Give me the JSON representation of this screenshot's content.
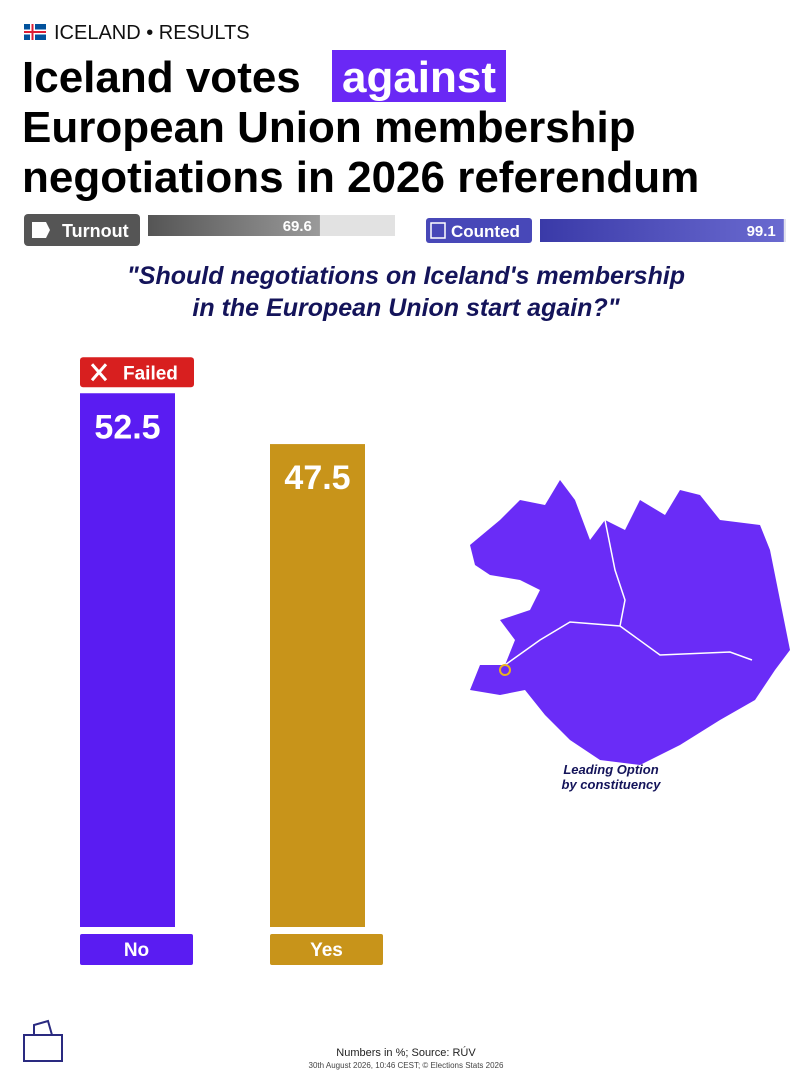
{
  "header": {
    "kicker": "ICELAND • RESULTS",
    "title_lead": "Iceland votes",
    "title_highlight": "against",
    "title_line2": "European Union membership",
    "title_line3": "negotiations in 2026 referendum"
  },
  "stats": {
    "turnout": {
      "label": "Turnout",
      "value": 69.6,
      "xlim": [
        0,
        100
      ]
    },
    "counted": {
      "label": "Counted",
      "value": 99.1,
      "xlim": [
        0,
        100
      ]
    }
  },
  "question": {
    "line1": "\"Should negotiations on Iceland's membership",
    "line2": "in the European Union start again?\""
  },
  "chart_data": {
    "type": "bar",
    "categories": [
      "No",
      "Yes"
    ],
    "values": [
      52.5,
      47.5
    ],
    "colors": [
      "#5a1cf2",
      "#c8941a"
    ],
    "ylim": [
      0,
      60
    ],
    "outcome_badge": "Failed"
  },
  "map": {
    "caption_line1": "Leading Option",
    "caption_line2": "by constituency"
  },
  "footer": {
    "line1": "Numbers in %; Source: RÚV",
    "line2": "30th August 2026, 10:46 CEST; © Elections Stats 2026"
  }
}
